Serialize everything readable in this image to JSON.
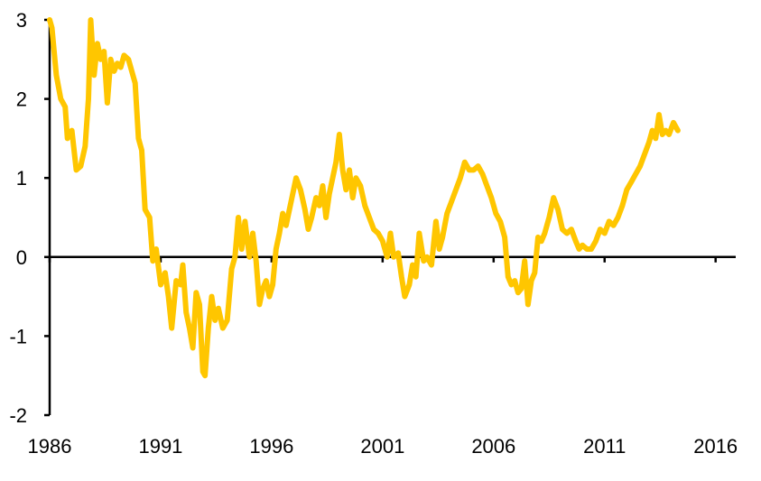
{
  "chart_data": {
    "type": "line",
    "title": "",
    "xlabel": "",
    "ylabel": "",
    "xlim": [
      1986,
      2016.5
    ],
    "ylim": [
      -2,
      3
    ],
    "x_ticks": [
      1986,
      1991,
      1996,
      2001,
      2006,
      2011,
      2016
    ],
    "x_tick_labels": [
      "1986",
      "1991",
      "1996",
      "2001",
      "2006",
      "2011",
      "2016"
    ],
    "y_ticks": [
      3,
      2,
      1,
      0,
      -1,
      -2
    ],
    "y_tick_labels": [
      "3",
      "2",
      "1",
      "0",
      "-1",
      "-2"
    ],
    "grid": false,
    "legend": "none",
    "colors": {
      "line": "#FFC600",
      "axis": "#000000",
      "background": "#FFFFFF"
    },
    "series": [
      {
        "color": "#FFC600",
        "points": [
          [
            1986.0,
            3.0
          ],
          [
            1986.1,
            2.9
          ],
          [
            1986.3,
            2.3
          ],
          [
            1986.5,
            2.0
          ],
          [
            1986.7,
            1.9
          ],
          [
            1986.8,
            1.5
          ],
          [
            1987.0,
            1.6
          ],
          [
            1987.2,
            1.1
          ],
          [
            1987.4,
            1.15
          ],
          [
            1987.6,
            1.4
          ],
          [
            1987.75,
            2.0
          ],
          [
            1987.85,
            3.0
          ],
          [
            1988.0,
            2.3
          ],
          [
            1988.15,
            2.7
          ],
          [
            1988.3,
            2.5
          ],
          [
            1988.45,
            2.6
          ],
          [
            1988.6,
            1.95
          ],
          [
            1988.75,
            2.5
          ],
          [
            1988.9,
            2.35
          ],
          [
            1989.05,
            2.45
          ],
          [
            1989.2,
            2.4
          ],
          [
            1989.35,
            2.55
          ],
          [
            1989.55,
            2.5
          ],
          [
            1989.7,
            2.35
          ],
          [
            1989.85,
            2.2
          ],
          [
            1990.0,
            1.5
          ],
          [
            1990.15,
            1.35
          ],
          [
            1990.3,
            0.6
          ],
          [
            1990.5,
            0.5
          ],
          [
            1990.65,
            -0.05
          ],
          [
            1990.8,
            0.1
          ],
          [
            1991.0,
            -0.35
          ],
          [
            1991.2,
            -0.2
          ],
          [
            1991.35,
            -0.5
          ],
          [
            1991.5,
            -0.9
          ],
          [
            1991.7,
            -0.3
          ],
          [
            1991.9,
            -0.35
          ],
          [
            1992.0,
            -0.1
          ],
          [
            1992.15,
            -0.7
          ],
          [
            1992.3,
            -0.9
          ],
          [
            1992.45,
            -1.15
          ],
          [
            1992.6,
            -0.45
          ],
          [
            1992.75,
            -0.6
          ],
          [
            1992.9,
            -1.45
          ],
          [
            1993.0,
            -1.5
          ],
          [
            1993.15,
            -0.9
          ],
          [
            1993.3,
            -0.5
          ],
          [
            1993.45,
            -0.8
          ],
          [
            1993.6,
            -0.65
          ],
          [
            1993.8,
            -0.9
          ],
          [
            1994.0,
            -0.8
          ],
          [
            1994.2,
            -0.15
          ],
          [
            1994.35,
            0.0
          ],
          [
            1994.5,
            0.5
          ],
          [
            1994.65,
            0.1
          ],
          [
            1994.8,
            0.45
          ],
          [
            1995.0,
            0.0
          ],
          [
            1995.15,
            0.3
          ],
          [
            1995.3,
            -0.05
          ],
          [
            1995.45,
            -0.6
          ],
          [
            1995.6,
            -0.4
          ],
          [
            1995.75,
            -0.3
          ],
          [
            1995.9,
            -0.5
          ],
          [
            1996.05,
            -0.35
          ],
          [
            1996.2,
            0.1
          ],
          [
            1996.35,
            0.3
          ],
          [
            1996.5,
            0.55
          ],
          [
            1996.65,
            0.4
          ],
          [
            1996.8,
            0.6
          ],
          [
            1996.95,
            0.8
          ],
          [
            1997.1,
            1.0
          ],
          [
            1997.3,
            0.85
          ],
          [
            1997.5,
            0.6
          ],
          [
            1997.65,
            0.35
          ],
          [
            1997.8,
            0.5
          ],
          [
            1998.0,
            0.75
          ],
          [
            1998.15,
            0.65
          ],
          [
            1998.3,
            0.9
          ],
          [
            1998.45,
            0.5
          ],
          [
            1998.6,
            0.8
          ],
          [
            1998.75,
            1.0
          ],
          [
            1998.9,
            1.2
          ],
          [
            1999.05,
            1.55
          ],
          [
            1999.2,
            1.1
          ],
          [
            1999.35,
            0.85
          ],
          [
            1999.5,
            1.1
          ],
          [
            1999.65,
            0.75
          ],
          [
            1999.8,
            1.0
          ],
          [
            2000.0,
            0.9
          ],
          [
            2000.2,
            0.65
          ],
          [
            2000.4,
            0.5
          ],
          [
            2000.6,
            0.35
          ],
          [
            2000.8,
            0.3
          ],
          [
            2001.0,
            0.2
          ],
          [
            2001.2,
            0.0
          ],
          [
            2001.35,
            0.3
          ],
          [
            2001.5,
            0.0
          ],
          [
            2001.7,
            0.05
          ],
          [
            2001.85,
            -0.25
          ],
          [
            2002.0,
            -0.5
          ],
          [
            2002.2,
            -0.35
          ],
          [
            2002.35,
            -0.1
          ],
          [
            2002.5,
            -0.25
          ],
          [
            2002.65,
            0.3
          ],
          [
            2002.85,
            -0.05
          ],
          [
            2003.0,
            0.0
          ],
          [
            2003.2,
            -0.1
          ],
          [
            2003.4,
            0.45
          ],
          [
            2003.55,
            0.1
          ],
          [
            2003.7,
            0.25
          ],
          [
            2003.9,
            0.55
          ],
          [
            2004.1,
            0.7
          ],
          [
            2004.3,
            0.85
          ],
          [
            2004.5,
            1.0
          ],
          [
            2004.7,
            1.2
          ],
          [
            2004.9,
            1.1
          ],
          [
            2005.1,
            1.1
          ],
          [
            2005.3,
            1.15
          ],
          [
            2005.5,
            1.05
          ],
          [
            2005.7,
            0.9
          ],
          [
            2005.9,
            0.75
          ],
          [
            2006.1,
            0.55
          ],
          [
            2006.3,
            0.45
          ],
          [
            2006.5,
            0.25
          ],
          [
            2006.65,
            -0.25
          ],
          [
            2006.8,
            -0.35
          ],
          [
            2006.95,
            -0.3
          ],
          [
            2007.1,
            -0.45
          ],
          [
            2007.25,
            -0.4
          ],
          [
            2007.4,
            -0.05
          ],
          [
            2007.55,
            -0.6
          ],
          [
            2007.7,
            -0.3
          ],
          [
            2007.85,
            -0.2
          ],
          [
            2008.0,
            0.25
          ],
          [
            2008.15,
            0.2
          ],
          [
            2008.3,
            0.3
          ],
          [
            2008.5,
            0.5
          ],
          [
            2008.7,
            0.75
          ],
          [
            2008.9,
            0.6
          ],
          [
            2009.1,
            0.35
          ],
          [
            2009.3,
            0.3
          ],
          [
            2009.5,
            0.35
          ],
          [
            2009.7,
            0.2
          ],
          [
            2009.85,
            0.1
          ],
          [
            2010.0,
            0.15
          ],
          [
            2010.2,
            0.1
          ],
          [
            2010.4,
            0.1
          ],
          [
            2010.6,
            0.2
          ],
          [
            2010.8,
            0.35
          ],
          [
            2011.0,
            0.3
          ],
          [
            2011.2,
            0.45
          ],
          [
            2011.4,
            0.4
          ],
          [
            2011.6,
            0.5
          ],
          [
            2011.8,
            0.65
          ],
          [
            2012.0,
            0.85
          ],
          [
            2012.2,
            0.95
          ],
          [
            2012.4,
            1.05
          ],
          [
            2012.6,
            1.15
          ],
          [
            2012.8,
            1.3
          ],
          [
            2013.0,
            1.45
          ],
          [
            2013.15,
            1.6
          ],
          [
            2013.3,
            1.5
          ],
          [
            2013.45,
            1.8
          ],
          [
            2013.6,
            1.55
          ],
          [
            2013.75,
            1.6
          ],
          [
            2013.9,
            1.55
          ],
          [
            2014.1,
            1.7
          ],
          [
            2014.3,
            1.6
          ]
        ]
      }
    ]
  }
}
